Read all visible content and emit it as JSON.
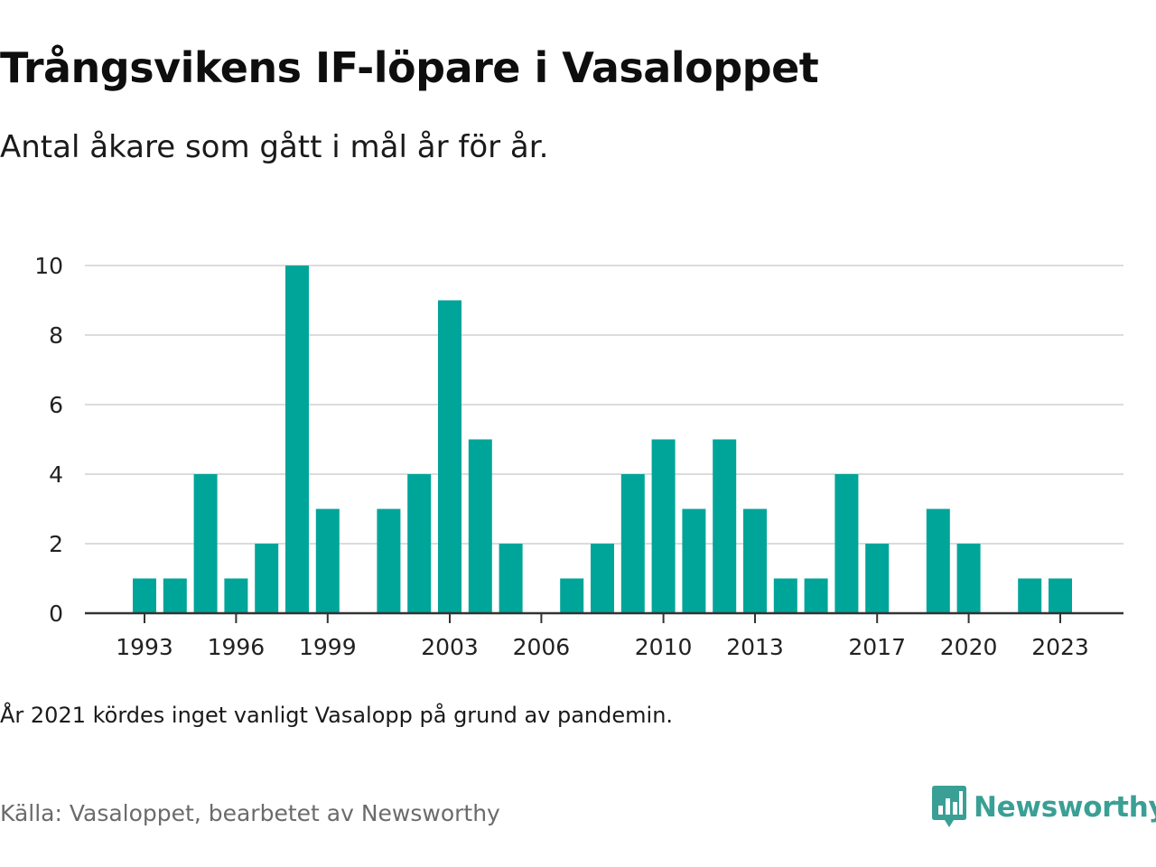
{
  "header": {
    "title": "Trångsvikens IF-löpare i Vasaloppet",
    "subtitle": "Antal åkare som gått i mål år för år."
  },
  "footer": {
    "note": "År 2021 kördes inget vanligt Vasalopp på grund av pandemin.",
    "source": "Källa: Vasaloppet, bearbetet av Newsworthy",
    "brand_name": "Newsworthy",
    "brand_icon": "newsworthy-logo-icon"
  },
  "colors": {
    "bar": "#00a59a",
    "grid": "#dcdcdc",
    "axis": "#333333",
    "brand": "#3a9f95"
  },
  "chart_data": {
    "type": "bar",
    "title": "Trångsvikens IF-löpare i Vasaloppet",
    "subtitle": "Antal åkare som gått i mål år för år.",
    "xlabel": "",
    "ylabel": "",
    "x": [
      1993,
      1994,
      1995,
      1996,
      1997,
      1998,
      1999,
      2000,
      2001,
      2002,
      2003,
      2004,
      2005,
      2006,
      2007,
      2008,
      2009,
      2010,
      2011,
      2012,
      2013,
      2014,
      2015,
      2016,
      2017,
      2018,
      2019,
      2020,
      2021,
      2022,
      2023
    ],
    "values": [
      1,
      1,
      4,
      1,
      2,
      10,
      3,
      0,
      3,
      4,
      9,
      5,
      2,
      0,
      1,
      2,
      4,
      5,
      3,
      5,
      3,
      1,
      1,
      4,
      2,
      0,
      3,
      2,
      0,
      1,
      1
    ],
    "xticks": [
      1993,
      1996,
      1999,
      2003,
      2006,
      2010,
      2013,
      2017,
      2020,
      2023
    ],
    "yticks": [
      0,
      2,
      4,
      6,
      8,
      10
    ],
    "ylim": [
      0,
      10
    ],
    "grid": true,
    "legend": "none"
  }
}
